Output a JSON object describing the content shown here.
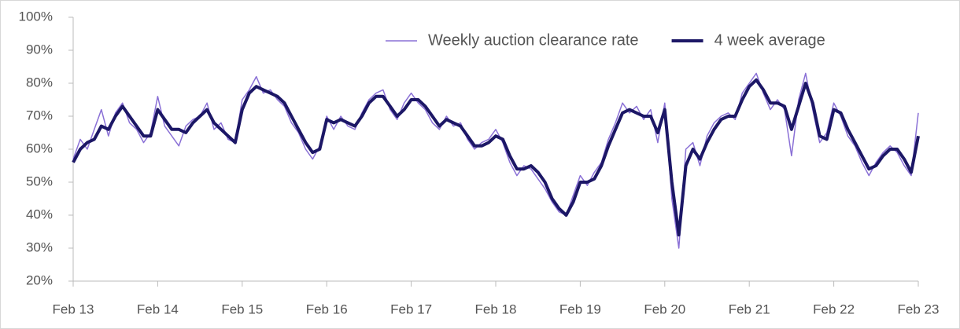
{
  "chart_data": {
    "type": "line",
    "categories": [
      "Feb 13",
      null,
      null,
      null,
      null,
      null,
      null,
      null,
      null,
      null,
      null,
      null,
      "Feb 14",
      null,
      null,
      null,
      null,
      null,
      null,
      null,
      null,
      null,
      null,
      null,
      "Feb 15",
      null,
      null,
      null,
      null,
      null,
      null,
      null,
      null,
      null,
      null,
      null,
      "Feb 16",
      null,
      null,
      null,
      null,
      null,
      null,
      null,
      null,
      null,
      null,
      null,
      "Feb 17",
      null,
      null,
      null,
      null,
      null,
      null,
      null,
      null,
      null,
      null,
      null,
      "Feb 18",
      null,
      null,
      null,
      null,
      null,
      null,
      null,
      null,
      null,
      null,
      null,
      "Feb 19",
      null,
      null,
      null,
      null,
      null,
      null,
      null,
      null,
      null,
      null,
      null,
      "Feb 20",
      null,
      null,
      null,
      null,
      null,
      null,
      null,
      null,
      null,
      null,
      null,
      "Feb 21",
      null,
      null,
      null,
      null,
      null,
      null,
      null,
      null,
      null,
      null,
      null,
      "Feb 22",
      null,
      null,
      null,
      null,
      null,
      null,
      null,
      null,
      null,
      null,
      null,
      "Feb 23"
    ],
    "series": [
      {
        "name": "Weekly auction clearance rate",
        "color": "#8a70d6",
        "width": 1.5,
        "values": [
          57,
          63,
          60,
          66,
          72,
          64,
          71,
          74,
          68,
          66,
          62,
          65,
          76,
          67,
          64,
          61,
          67,
          69,
          70,
          74,
          66,
          68,
          63,
          62,
          75,
          78,
          82,
          77,
          78,
          75,
          73,
          68,
          65,
          60,
          57,
          61,
          70,
          66,
          70,
          67,
          66,
          71,
          75,
          77,
          78,
          72,
          69,
          74,
          77,
          74,
          72,
          68,
          66,
          70,
          67,
          68,
          63,
          60,
          62,
          63,
          66,
          62,
          56,
          52,
          55,
          54,
          51,
          48,
          44,
          41,
          40,
          46,
          52,
          49,
          53,
          56,
          63,
          68,
          74,
          71,
          73,
          69,
          72,
          62,
          74,
          45,
          30,
          60,
          62,
          55,
          64,
          68,
          70,
          71,
          69,
          77,
          80,
          83,
          77,
          72,
          75,
          72,
          58,
          75,
          83,
          72,
          62,
          65,
          74,
          70,
          64,
          61,
          56,
          52,
          56,
          59,
          61,
          59,
          55,
          52,
          71
        ]
      },
      {
        "name": "4 week average",
        "color": "#1c1766",
        "width": 4,
        "values": [
          56,
          60,
          62,
          63,
          67,
          66,
          70,
          73,
          70,
          67,
          64,
          64,
          72,
          69,
          66,
          66,
          65,
          68,
          70,
          72,
          68,
          66,
          64,
          62,
          72,
          77,
          79,
          78,
          77,
          76,
          74,
          70,
          66,
          62,
          59,
          60,
          69,
          68,
          69,
          68,
          67,
          70,
          74,
          76,
          76,
          73,
          70,
          72,
          75,
          75,
          73,
          70,
          67,
          69,
          68,
          67,
          64,
          61,
          61,
          62,
          64,
          63,
          58,
          54,
          54,
          55,
          53,
          50,
          45,
          42,
          40,
          44,
          50,
          50,
          51,
          55,
          61,
          66,
          71,
          72,
          71,
          70,
          70,
          65,
          72,
          50,
          34,
          55,
          60,
          57,
          62,
          66,
          69,
          70,
          70,
          75,
          79,
          81,
          78,
          74,
          74,
          73,
          66,
          73,
          80,
          74,
          64,
          63,
          72,
          71,
          66,
          62,
          58,
          54,
          55,
          58,
          60,
          60,
          57,
          53,
          64
        ]
      }
    ],
    "ylim": [
      20,
      100
    ],
    "yticks": [
      {
        "value": 20,
        "label": "20%"
      },
      {
        "value": 30,
        "label": "30%"
      },
      {
        "value": 40,
        "label": "40%"
      },
      {
        "value": 50,
        "label": "50%"
      },
      {
        "value": 60,
        "label": "60%"
      },
      {
        "value": 70,
        "label": "70%"
      },
      {
        "value": 80,
        "label": "80%"
      },
      {
        "value": 90,
        "label": "90%"
      },
      {
        "value": 100,
        "label": "100%"
      }
    ],
    "grid": false,
    "legend": "upper right"
  }
}
